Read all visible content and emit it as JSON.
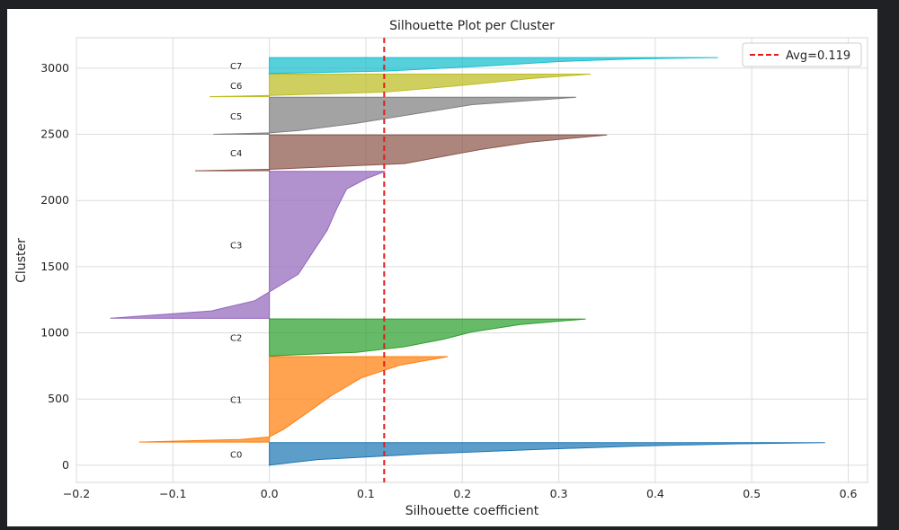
{
  "chart_data": {
    "type": "area",
    "title": "Silhouette Plot per Cluster",
    "xlabel": "Silhouette coefficient",
    "ylabel": "Cluster",
    "xlim": [
      -0.2,
      0.62
    ],
    "ylim": [
      -130,
      3230
    ],
    "xticks": [
      -0.2,
      -0.1,
      0.0,
      0.1,
      0.2,
      0.3,
      0.4,
      0.5,
      0.6
    ],
    "xtick_labels": [
      "−0.2",
      "−0.1",
      "0.0",
      "0.1",
      "0.2",
      "0.3",
      "0.4",
      "0.5",
      "0.6"
    ],
    "yticks": [
      0,
      500,
      1000,
      1500,
      2000,
      2500,
      3000
    ],
    "ytick_labels": [
      "0",
      "500",
      "1000",
      "1500",
      "2000",
      "2500",
      "3000"
    ],
    "grid": true,
    "legend": {
      "position": "top-right",
      "entries": [
        "Avg=0.119"
      ]
    },
    "average_line": {
      "value": 0.119,
      "label": "Avg=0.119",
      "color": "#e41a1c",
      "style": "dashed"
    },
    "clusters": [
      {
        "name": "C0",
        "color": "#1f77b4",
        "y_start": 0,
        "y_end": 170,
        "profile": [
          [
            0,
            0.0
          ],
          [
            0.25,
            0.05
          ],
          [
            0.5,
            0.16
          ],
          [
            0.7,
            0.28
          ],
          [
            0.85,
            0.38
          ],
          [
            0.95,
            0.48
          ],
          [
            1.0,
            0.576
          ]
        ]
      },
      {
        "name": "C1",
        "color": "#ff7f0e",
        "y_start": 175,
        "y_end": 820,
        "profile": [
          [
            0,
            -0.135
          ],
          [
            0.03,
            -0.03
          ],
          [
            0.06,
            0.0
          ],
          [
            0.15,
            0.015
          ],
          [
            0.35,
            0.04
          ],
          [
            0.55,
            0.065
          ],
          [
            0.75,
            0.095
          ],
          [
            0.9,
            0.135
          ],
          [
            1.0,
            0.185
          ]
        ]
      },
      {
        "name": "C2",
        "color": "#2ca02c",
        "y_start": 825,
        "y_end": 1105,
        "profile": [
          [
            0,
            0.0
          ],
          [
            0.1,
            0.09
          ],
          [
            0.25,
            0.14
          ],
          [
            0.45,
            0.18
          ],
          [
            0.65,
            0.21
          ],
          [
            0.85,
            0.26
          ],
          [
            1.0,
            0.328
          ]
        ]
      },
      {
        "name": "C3",
        "color": "#9467bd",
        "y_start": 1110,
        "y_end": 2220,
        "profile": [
          [
            0,
            -0.165
          ],
          [
            0.05,
            -0.06
          ],
          [
            0.12,
            -0.015
          ],
          [
            0.18,
            0.0
          ],
          [
            0.3,
            0.03
          ],
          [
            0.45,
            0.045
          ],
          [
            0.6,
            0.06
          ],
          [
            0.75,
            0.07
          ],
          [
            0.88,
            0.08
          ],
          [
            0.95,
            0.1
          ],
          [
            1.0,
            0.12
          ]
        ]
      },
      {
        "name": "C4",
        "color": "#8c564b",
        "y_start": 2225,
        "y_end": 2495,
        "profile": [
          [
            0,
            -0.077
          ],
          [
            0.04,
            0.0
          ],
          [
            0.2,
            0.14
          ],
          [
            0.4,
            0.18
          ],
          [
            0.6,
            0.22
          ],
          [
            0.8,
            0.27
          ],
          [
            1.0,
            0.35
          ]
        ]
      },
      {
        "name": "C5",
        "color": "#7f7f7f",
        "y_start": 2500,
        "y_end": 2780,
        "profile": [
          [
            0,
            -0.058
          ],
          [
            0.04,
            0.0
          ],
          [
            0.1,
            0.03
          ],
          [
            0.3,
            0.09
          ],
          [
            0.55,
            0.15
          ],
          [
            0.8,
            0.21
          ],
          [
            1.0,
            0.318
          ]
        ]
      },
      {
        "name": "C6",
        "color": "#bcbd22",
        "y_start": 2785,
        "y_end": 2955,
        "profile": [
          [
            0,
            -0.062
          ],
          [
            0.05,
            0.0
          ],
          [
            0.2,
            0.12
          ],
          [
            0.5,
            0.2
          ],
          [
            0.8,
            0.27
          ],
          [
            1.0,
            0.333
          ]
        ]
      },
      {
        "name": "C7",
        "color": "#17becf",
        "y_start": 2960,
        "y_end": 3080,
        "profile": [
          [
            0,
            0.0
          ],
          [
            0.15,
            0.12
          ],
          [
            0.45,
            0.22
          ],
          [
            0.75,
            0.3
          ],
          [
            0.92,
            0.38
          ],
          [
            1.0,
            0.465
          ]
        ]
      }
    ]
  }
}
